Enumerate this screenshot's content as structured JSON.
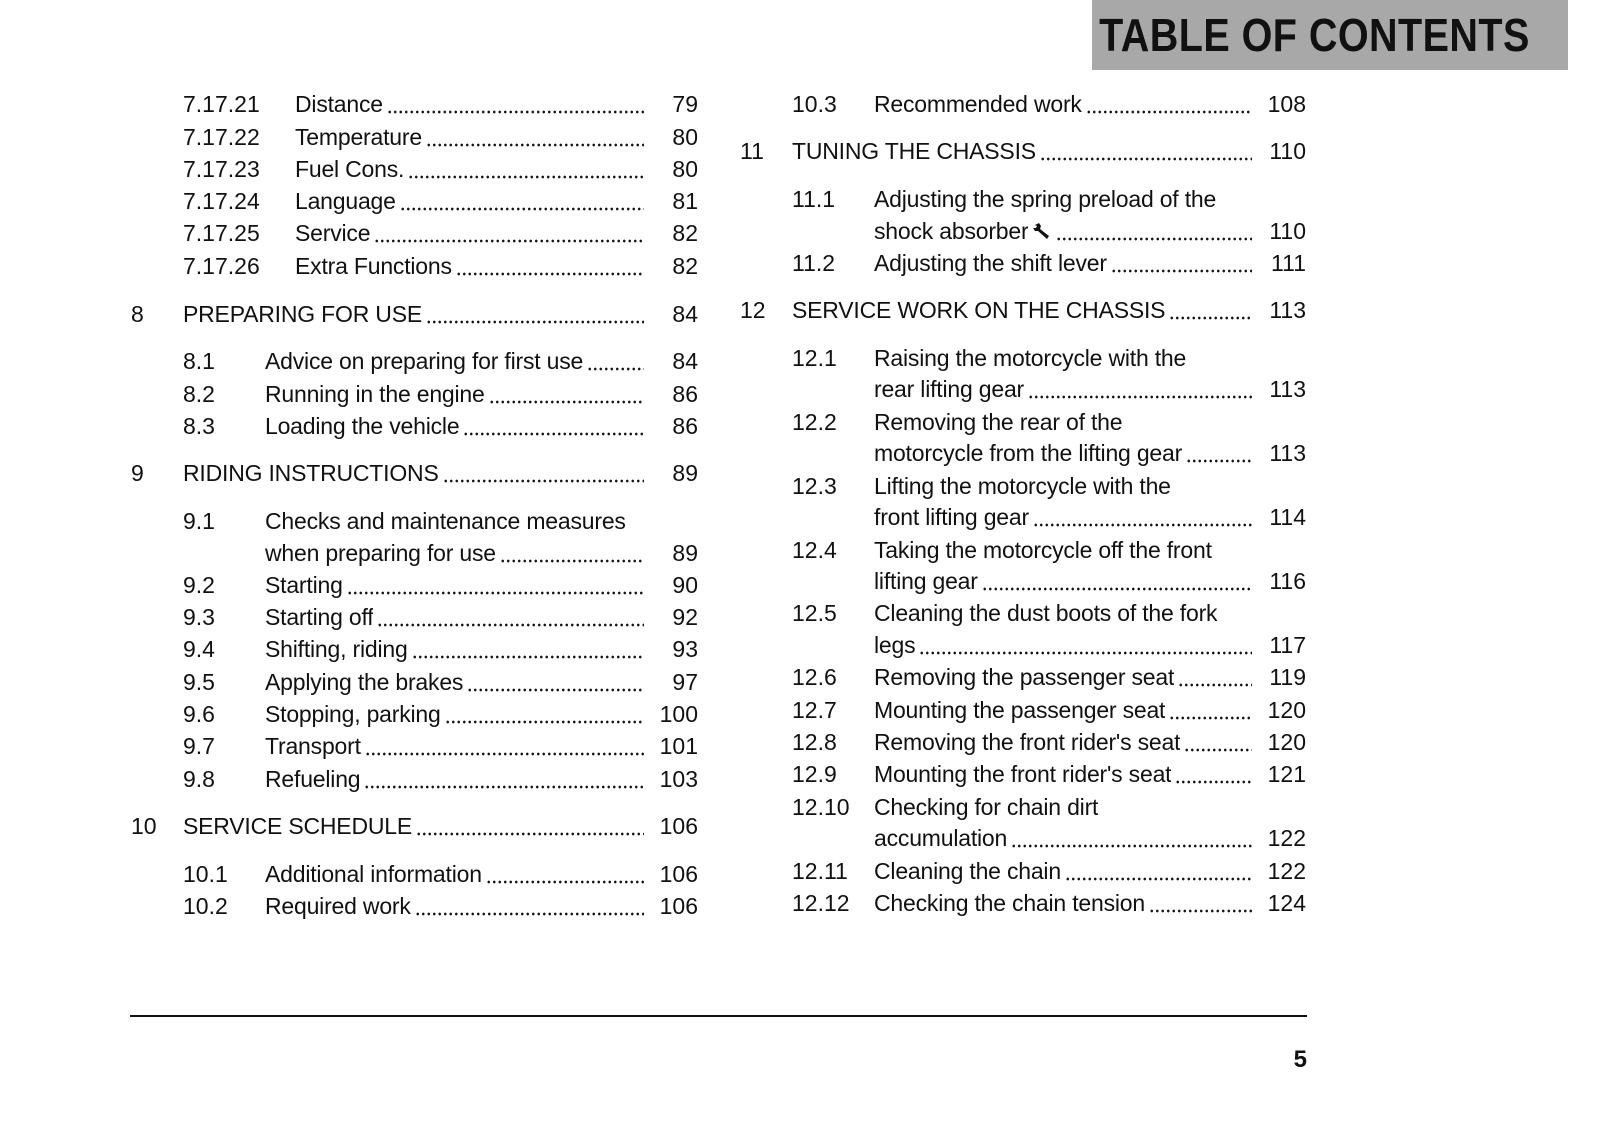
{
  "header": {
    "title": "TABLE OF CONTENTS"
  },
  "left_column": [
    {
      "num": "7.17.21",
      "title": "Distance",
      "page": "79",
      "kind": "sub2"
    },
    {
      "num": "7.17.22",
      "title": "Temperature",
      "page": "80",
      "kind": "sub2"
    },
    {
      "num": "7.17.23",
      "title": "Fuel Cons.",
      "page": "80",
      "kind": "sub2"
    },
    {
      "num": "7.17.24",
      "title": "Language",
      "page": "81",
      "kind": "sub2"
    },
    {
      "num": "7.17.25",
      "title": "Service",
      "page": "82",
      "kind": "sub2"
    },
    {
      "num": "7.17.26",
      "title": "Extra Functions",
      "page": "82",
      "kind": "sub2"
    },
    {
      "num": "8",
      "title": "PREPARING FOR USE",
      "page": "84",
      "kind": "chapter"
    },
    {
      "num": "8.1",
      "title": "Advice on preparing for first use",
      "page": "84",
      "kind": "sub"
    },
    {
      "num": "8.2",
      "title": "Running in the engine",
      "page": "86",
      "kind": "sub"
    },
    {
      "num": "8.3",
      "title": "Loading the vehicle",
      "page": "86",
      "kind": "sub"
    },
    {
      "num": "9",
      "title": "RIDING INSTRUCTIONS",
      "page": "89",
      "kind": "chapter"
    },
    {
      "num": "9.1",
      "title": "Checks and maintenance measures",
      "cont": "when preparing for use",
      "page": "89",
      "kind": "sub"
    },
    {
      "num": "9.2",
      "title": "Starting",
      "page": "90",
      "kind": "sub"
    },
    {
      "num": "9.3",
      "title": "Starting off",
      "page": "92",
      "kind": "sub"
    },
    {
      "num": "9.4",
      "title": "Shifting, riding",
      "page": "93",
      "kind": "sub"
    },
    {
      "num": "9.5",
      "title": "Applying the brakes",
      "page": "97",
      "kind": "sub"
    },
    {
      "num": "9.6",
      "title": "Stopping, parking",
      "page": "100",
      "kind": "sub"
    },
    {
      "num": "9.7",
      "title": "Transport",
      "page": "101",
      "kind": "sub"
    },
    {
      "num": "9.8",
      "title": "Refueling",
      "page": "103",
      "kind": "sub"
    },
    {
      "num": "10",
      "title": "SERVICE SCHEDULE",
      "page": "106",
      "kind": "chapter"
    },
    {
      "num": "10.1",
      "title": "Additional information",
      "page": "106",
      "kind": "sub"
    },
    {
      "num": "10.2",
      "title": "Required work",
      "page": "106",
      "kind": "sub"
    }
  ],
  "right_column": [
    {
      "num": "10.3",
      "title": "Recommended work",
      "page": "108",
      "kind": "sub"
    },
    {
      "num": "11",
      "title": "TUNING THE CHASSIS",
      "page": "110",
      "kind": "chapter"
    },
    {
      "num": "11.1",
      "title": "Adjusting the spring preload of the",
      "cont": "shock absorber",
      "icon": "wrench-icon",
      "page": "110",
      "kind": "sub"
    },
    {
      "num": "11.2",
      "title": "Adjusting the shift lever",
      "page": "111",
      "kind": "sub"
    },
    {
      "num": "12",
      "title": "SERVICE WORK ON THE CHASSIS",
      "page": "113",
      "kind": "chapter"
    },
    {
      "num": "12.1",
      "title": "Raising the motorcycle with the",
      "cont": "rear lifting gear",
      "page": "113",
      "kind": "sub"
    },
    {
      "num": "12.2",
      "title": "Removing the rear of the",
      "cont": "motorcycle from the lifting gear",
      "page": "113",
      "kind": "sub"
    },
    {
      "num": "12.3",
      "title": "Lifting the motorcycle with the",
      "cont": "front lifting gear",
      "page": "114",
      "kind": "sub"
    },
    {
      "num": "12.4",
      "title": "Taking the motorcycle off the front",
      "cont": "lifting gear",
      "page": "116",
      "kind": "sub"
    },
    {
      "num": "12.5",
      "title": "Cleaning the dust boots of the fork",
      "cont": "legs",
      "page": "117",
      "kind": "sub"
    },
    {
      "num": "12.6",
      "title": "Removing the passenger seat",
      "page": "119",
      "kind": "sub"
    },
    {
      "num": "12.7",
      "title": "Mounting the passenger seat",
      "page": "120",
      "kind": "sub"
    },
    {
      "num": "12.8",
      "title": "Removing the front rider's seat",
      "page": "120",
      "kind": "sub"
    },
    {
      "num": "12.9",
      "title": "Mounting the front rider's seat",
      "page": "121",
      "kind": "sub"
    },
    {
      "num": "12.10",
      "title": "Checking for chain dirt",
      "cont": "accumulation",
      "page": "122",
      "kind": "sub"
    },
    {
      "num": "12.11",
      "title": "Cleaning the chain",
      "page": "122",
      "kind": "sub"
    },
    {
      "num": "12.12",
      "title": "Checking the chain tension",
      "page": "124",
      "kind": "sub"
    }
  ],
  "footer": {
    "page_number": "5"
  }
}
